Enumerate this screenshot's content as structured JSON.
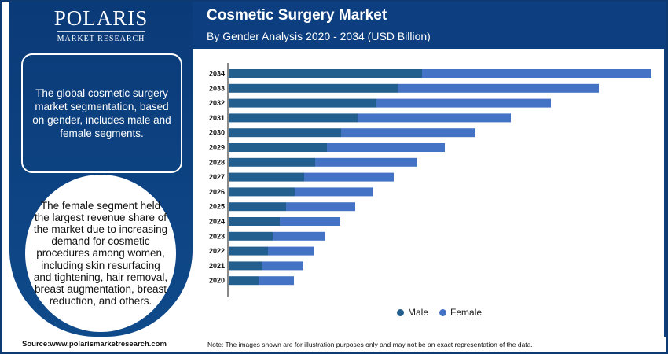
{
  "brand": {
    "name": "POLARIS",
    "sub": "MARKET RESEARCH"
  },
  "header": {
    "title": "Cosmetic Surgery Market",
    "subtitle": "By Gender Analysis 2020 - 2034 (USD Billion)"
  },
  "left": {
    "box_text": "The global cosmetic surgery market segmentation, based on gender, includes male and female segments.",
    "circle_text": "The female segment held the largest revenue share of the market due to increasing demand for cosmetic procedures among women, including skin resurfacing and tightening, hair removal, breast augmentation, breast reduction, and others."
  },
  "footer": {
    "source": "Source:www.polarismarketresearch.com",
    "note": "Note: The images shown are for illustration purposes only and may not be an exact representation of the data."
  },
  "chart_data": {
    "type": "bar",
    "orientation": "horizontal",
    "stacked": true,
    "title": "Cosmetic Surgery Market",
    "subtitle": "By Gender Analysis 2020 - 2034 (USD Billion)",
    "categories": [
      "2034",
      "2033",
      "2032",
      "2031",
      "2030",
      "2029",
      "2028",
      "2027",
      "2026",
      "2025",
      "2024",
      "2023",
      "2022",
      "2021",
      "2020"
    ],
    "series": [
      {
        "name": "Male",
        "color": "#235f8e",
        "values": [
          246,
          215,
          188,
          164,
          143,
          125,
          110,
          96,
          84,
          73,
          65,
          56,
          50,
          43,
          38
        ]
      },
      {
        "name": "Female",
        "color": "#4472c4",
        "values": [
          292,
          256,
          222,
          195,
          171,
          150,
          130,
          114,
          100,
          88,
          77,
          67,
          59,
          52,
          45
        ]
      }
    ],
    "xaxis_visible": false,
    "grid": false,
    "legend": "bottom",
    "note_values": "relative units, no axis scale shown"
  }
}
